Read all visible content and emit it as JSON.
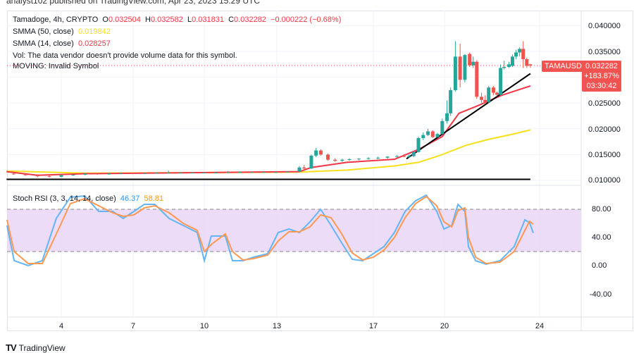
{
  "header": {
    "published": "analyst102 published on TradingView.com, Apr 23, 2023 15:29 UTC"
  },
  "legend": {
    "symbol": "Tamadoge, 4h, CRYPTO",
    "o_label": "O",
    "o": "0.032504",
    "h_label": "H",
    "h": "0.032582",
    "l_label": "L",
    "l": "0.031831",
    "c_label": "C",
    "c": "0.032282",
    "change": "−0.000222 (−0.68%)",
    "smma50_label": "SMMA (50, close)",
    "smma50": "0.019842",
    "smma14_label": "SMMA (14, close)",
    "smma14": "0.028257",
    "vol": "Vol: The data vendor doesn't provide volume data for this symbol.",
    "moving": "MOVING: Invalid Symbol",
    "stoch_label": "Stoch RSI (3, 3, 14, 14, close)",
    "stoch_k": "46.37",
    "stoch_d": "58.81"
  },
  "price_tag": {
    "symbol": "TAMAUSD",
    "price": "0.032282",
    "change_pct": "+183.87%",
    "countdown": "03:30:42"
  },
  "price_axis": [
    "0.040000",
    "0.035000",
    "0.030000",
    "0.025000",
    "0.020000",
    "0.015000",
    "0.010000"
  ],
  "stoch_axis": [
    "80.00",
    "40.00",
    "0.00",
    "-40.00"
  ],
  "time_axis": [
    "4",
    "7",
    "10",
    "13",
    "17",
    "20",
    "24"
  ],
  "footer": {
    "brand": "TradingView"
  },
  "colors": {
    "up": "#26a69a",
    "down": "#ef5350",
    "smma50": "#f7e01a",
    "smma14": "#f23645",
    "stoch_k": "#64b5f6",
    "stoch_d": "#ff9850",
    "band": "#e1bee7"
  },
  "chart_data": [
    {
      "type": "candlestick",
      "title": "Tamadoge, 4h, CRYPTO",
      "ylim": [
        0.0095,
        0.0415
      ],
      "x_unit": "day of April 2023",
      "candles": [
        [
          2,
          0.0113,
          0.0115,
          0.0111,
          0.0112
        ],
        [
          2.5,
          0.0112,
          0.0113,
          0.0109,
          0.011
        ],
        [
          3,
          0.011,
          0.0112,
          0.0106,
          0.0108
        ],
        [
          3.5,
          0.0108,
          0.011,
          0.0106,
          0.0107
        ],
        [
          4,
          0.0107,
          0.0111,
          0.0106,
          0.011
        ],
        [
          4.5,
          0.011,
          0.0112,
          0.0109,
          0.0111
        ],
        [
          5,
          0.0111,
          0.0114,
          0.011,
          0.0113
        ],
        [
          5.5,
          0.0113,
          0.0114,
          0.0111,
          0.0112
        ],
        [
          6,
          0.0112,
          0.0114,
          0.0111,
          0.0113
        ],
        [
          6.5,
          0.0113,
          0.0115,
          0.0112,
          0.0114
        ],
        [
          7,
          0.0114,
          0.0115,
          0.0112,
          0.0113
        ],
        [
          7.5,
          0.0113,
          0.0115,
          0.0112,
          0.0114
        ],
        [
          8,
          0.0114,
          0.0116,
          0.0113,
          0.0115
        ],
        [
          8.5,
          0.0115,
          0.0119,
          0.0114,
          0.0115
        ],
        [
          9,
          0.0115,
          0.0116,
          0.0114,
          0.0115
        ],
        [
          9.5,
          0.0115,
          0.0116,
          0.0114,
          0.0115
        ],
        [
          10,
          0.0115,
          0.0116,
          0.0114,
          0.0115
        ],
        [
          10.5,
          0.0115,
          0.0116,
          0.0114,
          0.0115
        ],
        [
          11,
          0.0115,
          0.0118,
          0.0114,
          0.0116
        ],
        [
          11.5,
          0.0116,
          0.0117,
          0.0115,
          0.0116
        ],
        [
          12,
          0.0116,
          0.0117,
          0.0115,
          0.0116
        ],
        [
          12.5,
          0.0116,
          0.0117,
          0.0115,
          0.0116
        ],
        [
          13,
          0.0116,
          0.0117,
          0.0115,
          0.0116
        ],
        [
          13.5,
          0.0116,
          0.0117,
          0.0115,
          0.0117
        ],
        [
          14.0,
          0.0117,
          0.0128,
          0.0116,
          0.0125
        ],
        [
          14.2,
          0.0125,
          0.013,
          0.0122,
          0.0123
        ],
        [
          14.5,
          0.0123,
          0.015,
          0.0122,
          0.0148
        ],
        [
          14.7,
          0.0148,
          0.0163,
          0.0145,
          0.0158
        ],
        [
          14.9,
          0.0158,
          0.016,
          0.0148,
          0.015
        ],
        [
          15.2,
          0.015,
          0.0152,
          0.0138,
          0.014
        ],
        [
          15.5,
          0.014,
          0.0143,
          0.0136,
          0.0138
        ],
        [
          15.8,
          0.0138,
          0.0142,
          0.0136,
          0.014
        ],
        [
          16.1,
          0.014,
          0.0143,
          0.0138,
          0.0141
        ],
        [
          16.5,
          0.0141,
          0.0143,
          0.0139,
          0.0142
        ],
        [
          16.9,
          0.0142,
          0.0145,
          0.014,
          0.0143
        ],
        [
          17.3,
          0.0143,
          0.0146,
          0.0141,
          0.0144
        ],
        [
          17.7,
          0.0144,
          0.0147,
          0.0142,
          0.0146
        ],
        [
          18.1,
          0.0146,
          0.0149,
          0.0144,
          0.0147
        ],
        [
          18.4,
          0.0147,
          0.0151,
          0.0145,
          0.0146
        ],
        [
          18.6,
          0.0146,
          0.015,
          0.0143,
          0.0147
        ],
        [
          18.8,
          0.0147,
          0.0157,
          0.0145,
          0.0155
        ],
        [
          19.0,
          0.0155,
          0.0185,
          0.0154,
          0.0182
        ],
        [
          19.2,
          0.0182,
          0.0193,
          0.0178,
          0.0188
        ],
        [
          19.4,
          0.0188,
          0.02,
          0.0186,
          0.0195
        ],
        [
          19.6,
          0.0195,
          0.0197,
          0.0182,
          0.0184
        ],
        [
          19.8,
          0.0184,
          0.0192,
          0.0183,
          0.019
        ],
        [
          20.0,
          0.019,
          0.022,
          0.0188,
          0.0215
        ],
        [
          20.2,
          0.0215,
          0.0255,
          0.021,
          0.023
        ],
        [
          20.35,
          0.023,
          0.028,
          0.0225,
          0.0275
        ],
        [
          20.55,
          0.0275,
          0.037,
          0.0272,
          0.034
        ],
        [
          20.75,
          0.034,
          0.0365,
          0.028,
          0.0295
        ],
        [
          20.95,
          0.0295,
          0.0345,
          0.029,
          0.0343
        ],
        [
          21.15,
          0.0345,
          0.0348,
          0.032,
          0.0323
        ],
        [
          21.3,
          0.0323,
          0.034,
          0.0318,
          0.033
        ],
        [
          21.45,
          0.033,
          0.0333,
          0.0258,
          0.0262
        ],
        [
          21.65,
          0.0262,
          0.027,
          0.025,
          0.0256
        ],
        [
          21.8,
          0.0256,
          0.0265,
          0.0252,
          0.0252
        ],
        [
          21.95,
          0.0252,
          0.0283,
          0.025,
          0.028
        ],
        [
          22.15,
          0.028,
          0.0283,
          0.0265,
          0.027
        ],
        [
          22.3,
          0.027,
          0.0272,
          0.0263,
          0.0266
        ],
        [
          22.45,
          0.0266,
          0.0325,
          0.0265,
          0.0318
        ],
        [
          22.6,
          0.0318,
          0.0332,
          0.0315,
          0.032
        ],
        [
          22.8,
          0.032,
          0.033,
          0.0318,
          0.0325
        ],
        [
          22.95,
          0.0322,
          0.0344,
          0.032,
          0.034
        ],
        [
          23.1,
          0.034,
          0.0353,
          0.0335,
          0.0348
        ],
        [
          23.25,
          0.0348,
          0.0358,
          0.034,
          0.0355
        ],
        [
          23.4,
          0.0355,
          0.037,
          0.0318,
          0.0335
        ],
        [
          23.55,
          0.0335,
          0.0338,
          0.0318,
          0.0322
        ],
        [
          23.7,
          0.0325,
          0.03258,
          0.03183,
          0.03228
        ]
      ],
      "smma50": [
        [
          1.7,
          0.0118
        ],
        [
          5,
          0.0114
        ],
        [
          10,
          0.0115
        ],
        [
          14,
          0.0116
        ],
        [
          16,
          0.012
        ],
        [
          18,
          0.0128
        ],
        [
          19,
          0.0135
        ],
        [
          20,
          0.015
        ],
        [
          21,
          0.0168
        ],
        [
          22,
          0.018
        ],
        [
          23,
          0.019
        ],
        [
          23.7,
          0.0198
        ]
      ],
      "smma14": [
        [
          1.7,
          0.0117
        ],
        [
          3,
          0.011
        ],
        [
          5,
          0.0113
        ],
        [
          14,
          0.0117
        ],
        [
          14.5,
          0.0125
        ],
        [
          16,
          0.0135
        ],
        [
          18,
          0.0141
        ],
        [
          19,
          0.016
        ],
        [
          20,
          0.0185
        ],
        [
          20.7,
          0.023
        ],
        [
          21.5,
          0.0245
        ],
        [
          22.5,
          0.0265
        ],
        [
          23.7,
          0.0283
        ]
      ],
      "trendlines": [
        [
          [
            1.7,
            0.0102
          ],
          [
            23.7,
            0.0102
          ]
        ],
        [
          [
            18.5,
            0.0142
          ],
          [
            23.7,
            0.0307
          ]
        ]
      ]
    },
    {
      "type": "line",
      "title": "Stoch RSI (3, 3, 14, 14, close)",
      "ylim": [
        -55,
        110
      ],
      "bands": [
        20,
        80
      ],
      "x": [
        1.72,
        2.02,
        2.61,
        3.2,
        3.79,
        4.38,
        4.98,
        5.57,
        6.16,
        6.6,
        7.05,
        7.49,
        7.93,
        8.53,
        9.12,
        9.71,
        10.01,
        10.3,
        10.89,
        11.19,
        11.63,
        12.08,
        12.67,
        13.11,
        13.56,
        14.0,
        14.44,
        14.89,
        15.33,
        15.78,
        16.22,
        16.66,
        17.11,
        17.55,
        17.99,
        18.44,
        18.88,
        19.33,
        19.77,
        20.07,
        20.4,
        20.66,
        20.95,
        21.1,
        21.4,
        21.84,
        22.43,
        23.02,
        23.47,
        23.67,
        23.82
      ],
      "series": [
        {
          "name": "K",
          "values": [
            57,
            7,
            0,
            7,
            67,
            97,
            99,
            77,
            77,
            67,
            77,
            87,
            87,
            67,
            57,
            47,
            7,
            42,
            42,
            7,
            7,
            12,
            17,
            47,
            52,
            47,
            62,
            80,
            57,
            32,
            9,
            7,
            17,
            27,
            47,
            77,
            92,
            100,
            77,
            52,
            57,
            87,
            77,
            27,
            7,
            2,
            7,
            27,
            65,
            61,
            46.37
          ]
        },
        {
          "name": "D",
          "values": [
            65,
            20,
            3,
            3,
            45,
            88,
            95,
            85,
            75,
            70,
            72,
            82,
            85,
            75,
            60,
            50,
            20,
            30,
            45,
            20,
            8,
            10,
            15,
            35,
            48,
            48,
            55,
            72,
            68,
            45,
            18,
            8,
            12,
            22,
            40,
            68,
            88,
            98,
            85,
            62,
            55,
            78,
            82,
            40,
            12,
            3,
            5,
            20,
            50,
            63,
            58.81
          ]
        }
      ]
    }
  ]
}
